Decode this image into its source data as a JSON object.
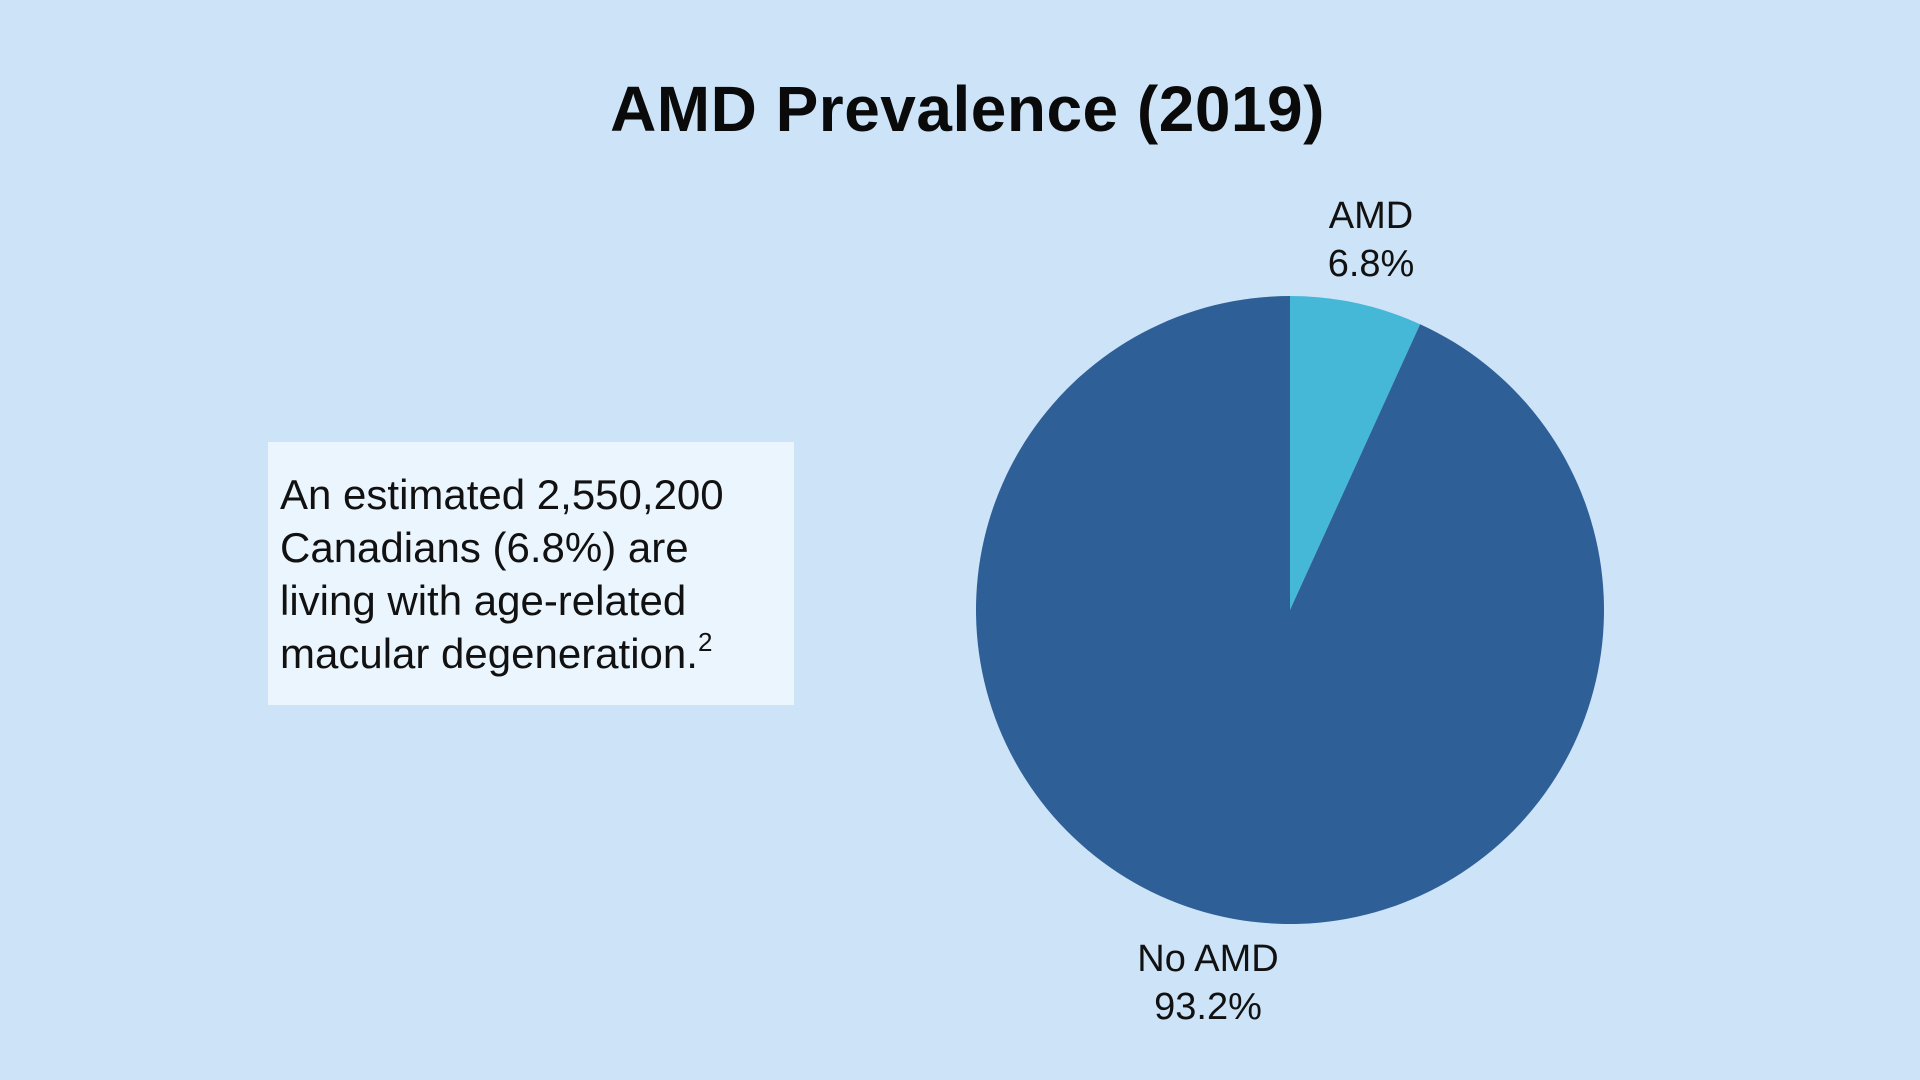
{
  "chart_data": {
    "type": "pie",
    "title": "AMD Prevalence (2019)",
    "slices": [
      {
        "label": "AMD",
        "value": 6.8,
        "value_label": "6.8%",
        "color": "#45b8d8"
      },
      {
        "label": "No AMD",
        "value": 93.2,
        "value_label": "93.2%",
        "color": "#2e5f97"
      }
    ]
  },
  "callout": {
    "text": "An estimated 2,550,200 Canadians (6.8%) are living with age-related macular degeneration.",
    "footnote": "2"
  },
  "colors": {
    "background": "#cde3f8",
    "callout_background": "#ebf5fe"
  }
}
